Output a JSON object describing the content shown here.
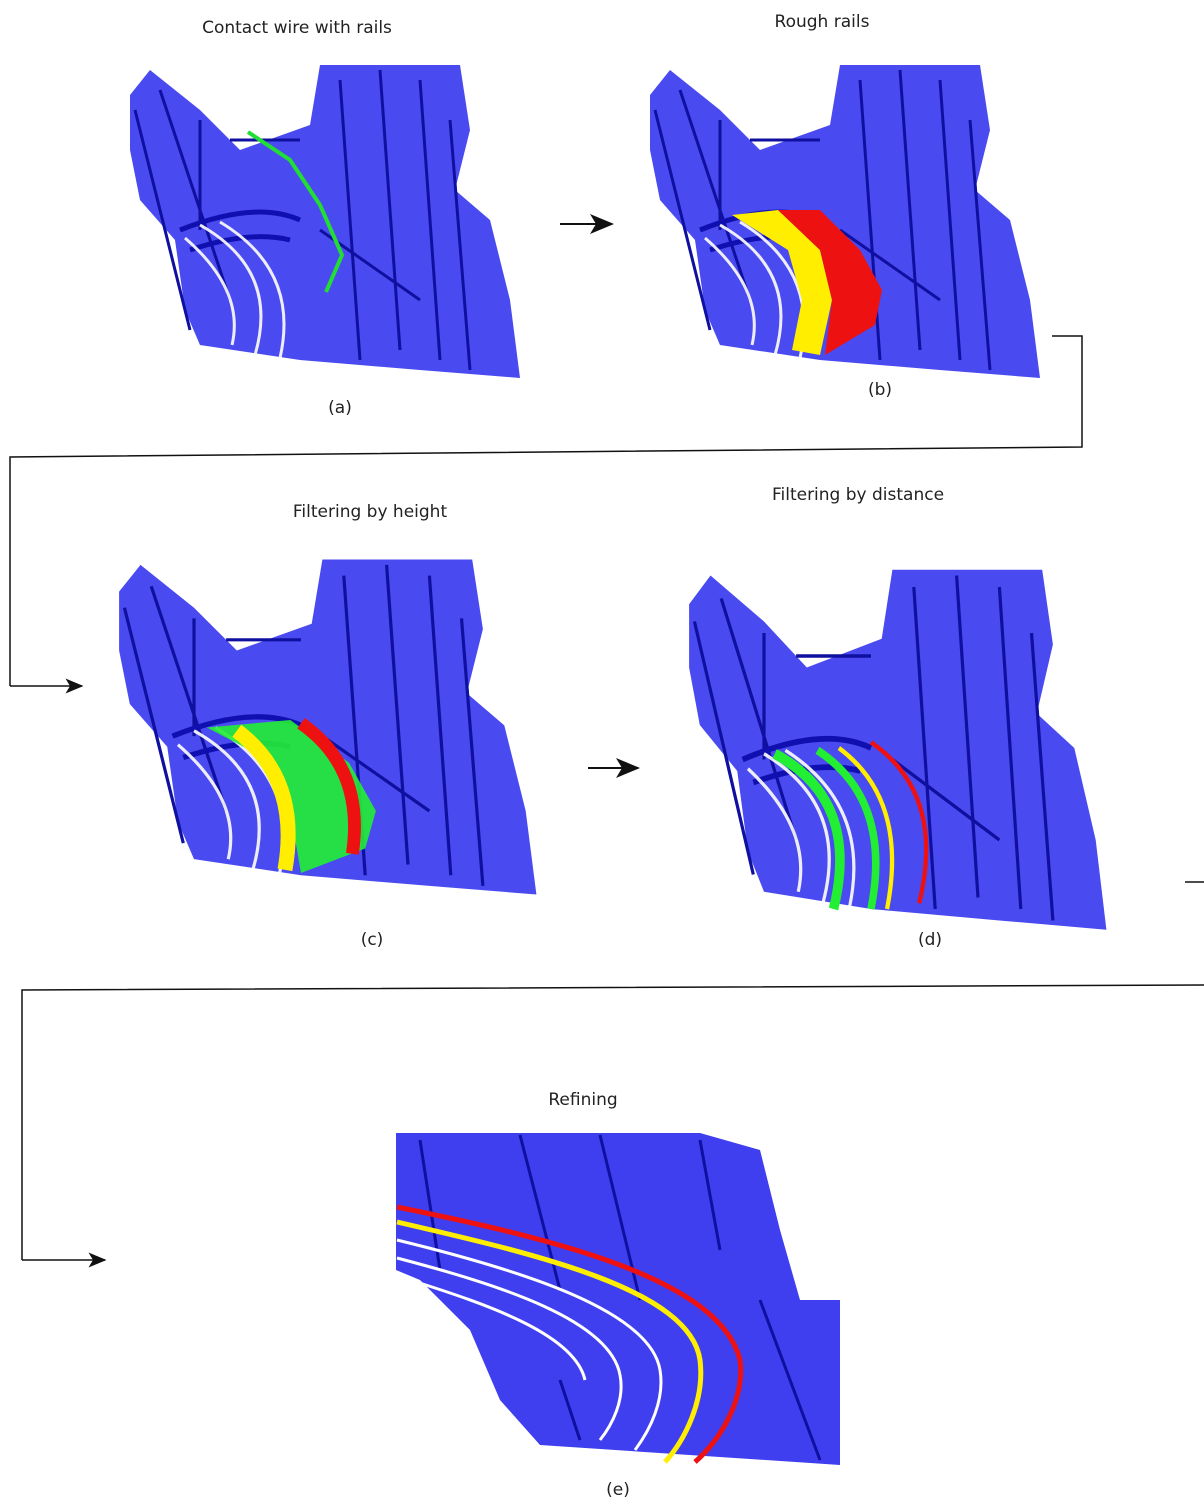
{
  "panels": [
    {
      "title": "Contact wire with rails",
      "label": "(a)"
    },
    {
      "title": "Rough rails",
      "label": "(b)"
    },
    {
      "title": "Filtering by height",
      "label": "(c)"
    },
    {
      "title": "Filtering by distance",
      "label": "(d)"
    },
    {
      "title": "Refining",
      "label": "(e)"
    }
  ]
}
